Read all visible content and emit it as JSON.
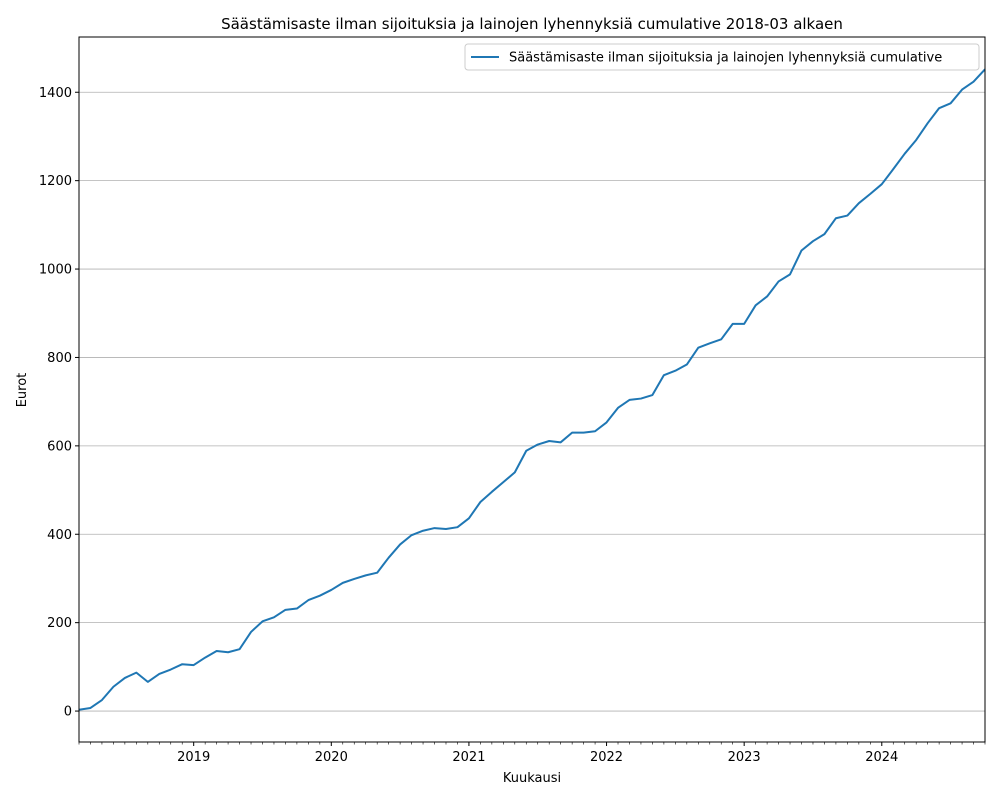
{
  "chart_data": {
    "type": "line",
    "title": "Säästämisaste ilman sijoituksia ja lainojen lyhennyksiä cumulative 2018-03 alkaen",
    "xlabel": "Kuukausi",
    "ylabel": "Eurot",
    "ylim": [
      -70,
      1525
    ],
    "xlim": [
      "2018-03",
      "2024-10"
    ],
    "y_ticks": [
      0,
      200,
      400,
      600,
      800,
      1000,
      1200,
      1400
    ],
    "x_ticks": [
      {
        "date": "2019-01",
        "label": "2019"
      },
      {
        "date": "2020-01",
        "label": "2020"
      },
      {
        "date": "2021-01",
        "label": "2021"
      },
      {
        "date": "2022-01",
        "label": "2022"
      },
      {
        "date": "2023-01",
        "label": "2023"
      },
      {
        "date": "2024-01",
        "label": "2024"
      }
    ],
    "grid": "horizontal",
    "legend": "top-right",
    "color": "#1f77b4",
    "series": [
      {
        "name": "Säästämisaste ilman sijoituksia ja lainojen lyhennyksiä cumulative",
        "x": [
          "2018-03",
          "2018-04",
          "2018-05",
          "2018-06",
          "2018-07",
          "2018-08",
          "2018-09",
          "2018-10",
          "2018-11",
          "2018-12",
          "2019-01",
          "2019-02",
          "2019-03",
          "2019-04",
          "2019-05",
          "2019-06",
          "2019-07",
          "2019-08",
          "2019-09",
          "2019-10",
          "2019-11",
          "2019-12",
          "2020-01",
          "2020-02",
          "2020-03",
          "2020-04",
          "2020-05",
          "2020-06",
          "2020-07",
          "2020-08",
          "2020-09",
          "2020-10",
          "2020-11",
          "2020-12",
          "2021-01",
          "2021-02",
          "2021-03",
          "2021-04",
          "2021-05",
          "2021-06",
          "2021-07",
          "2021-08",
          "2021-09",
          "2021-10",
          "2021-11",
          "2021-12",
          "2022-01",
          "2022-02",
          "2022-03",
          "2022-04",
          "2022-05",
          "2022-06",
          "2022-07",
          "2022-08",
          "2022-09",
          "2022-10",
          "2022-11",
          "2022-12",
          "2023-01",
          "2023-02",
          "2023-03",
          "2023-04",
          "2023-05",
          "2023-06",
          "2023-07",
          "2023-08",
          "2023-09",
          "2023-10",
          "2023-11",
          "2023-12",
          "2024-01",
          "2024-02",
          "2024-03",
          "2024-04",
          "2024-05",
          "2024-06",
          "2024-07",
          "2024-08",
          "2024-09",
          "2024-10"
        ],
        "values": [
          3,
          7,
          25,
          55,
          75,
          87,
          66,
          84,
          94,
          106,
          104,
          121,
          136,
          133,
          140,
          179,
          203,
          212,
          229,
          232,
          251,
          261,
          274,
          290,
          299,
          307,
          313,
          347,
          377,
          398,
          408,
          414,
          412,
          416,
          436,
          473,
          496,
          518,
          540,
          589,
          603,
          611,
          608,
          630,
          630,
          633,
          653,
          686,
          704,
          707,
          715,
          760,
          770,
          784,
          822,
          832,
          841,
          876,
          876,
          918,
          938,
          972,
          988,
          1042,
          1063,
          1079,
          1115,
          1121,
          1149,
          1170,
          1192,
          1226,
          1261,
          1292,
          1330,
          1364,
          1375,
          1406,
          1424,
          1452
        ]
      }
    ]
  }
}
